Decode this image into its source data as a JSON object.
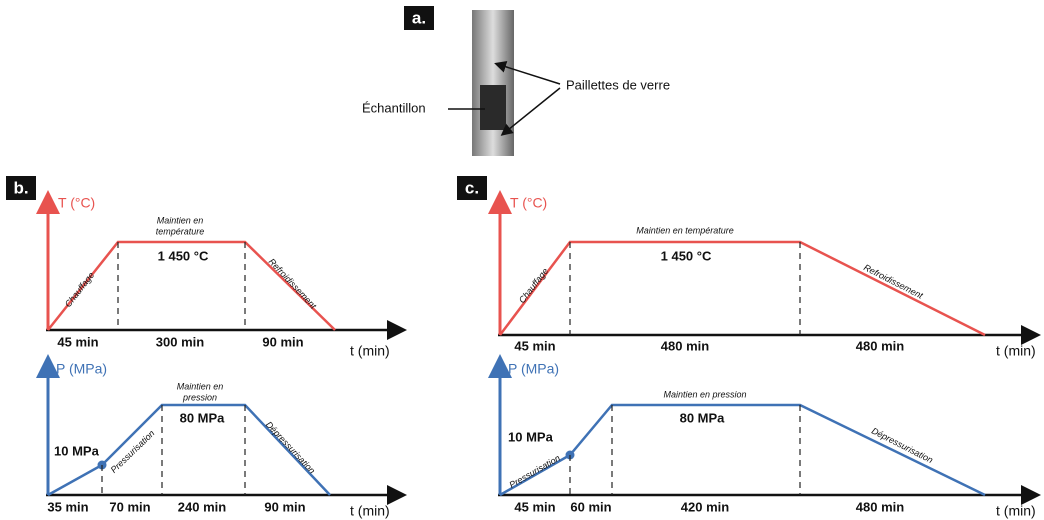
{
  "panel_a": {
    "label": "a.",
    "sample": "Échantillon",
    "flakes": "Paillettes de verre"
  },
  "panel_b": {
    "label": "b.",
    "temperature": {
      "axis_y": "T (°C)",
      "axis_x": "t (min)",
      "heating": "Chauffage",
      "hold": [
        "Maintien en",
        "température"
      ],
      "cooling": "Refroidissement",
      "level": "1 450 °C",
      "durations": [
        "45 min",
        "300 min",
        "90 min"
      ]
    },
    "pressure": {
      "axis_y": "P (MPa)",
      "axis_x": "t (min)",
      "pressurization": "Pressurisation",
      "hold": [
        "Maintien en",
        "pression"
      ],
      "depressurization": "Dépressurisation",
      "level": "80 MPa",
      "point": "10 MPa",
      "durations": [
        "35 min",
        "70 min",
        "240 min",
        "90 min"
      ]
    }
  },
  "panel_c": {
    "label": "c.",
    "temperature": {
      "axis_y": "T (°C)",
      "axis_x": "t (min)",
      "heating": "Chauffage",
      "hold": "Maintien en température",
      "cooling": "Refroidissement",
      "level": "1 450 °C",
      "durations": [
        "45 min",
        "480 min",
        "480 min"
      ]
    },
    "pressure": {
      "axis_y": "P (MPa)",
      "axis_x": "t (min)",
      "pressurization": "Pressurisation",
      "hold": "Maintien en pression",
      "depressurization": "Dépressurisation",
      "level": "80 MPa",
      "point": "10 MPa",
      "durations": [
        "45 min",
        "60 min",
        "420 min",
        "480 min"
      ]
    }
  }
}
